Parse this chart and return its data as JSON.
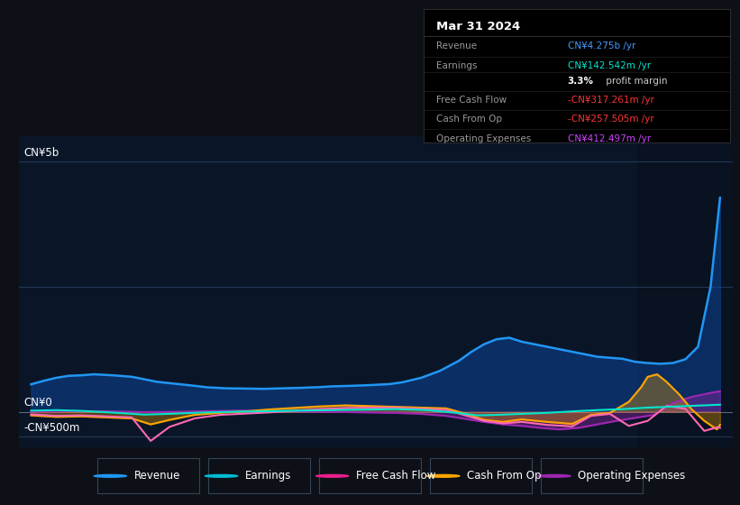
{
  "bg_color": "#0d1117",
  "plot_bg_color": "#0a1628",
  "ylim": [
    -700,
    5500
  ],
  "xlim": [
    2013.0,
    2024.35
  ],
  "ylabel_top": "CN¥5b",
  "ylabel_mid": "CN¥0",
  "ylabel_bot": "-CN¥500m",
  "ylabel_top_y": 5000,
  "ylabel_mid_y": 0,
  "ylabel_bot_y": -500,
  "xticks": [
    2014,
    2015,
    2016,
    2017,
    2018,
    2019,
    2020,
    2021,
    2022,
    2023,
    2024
  ],
  "revenue_x": [
    2013.2,
    2013.4,
    2013.6,
    2013.8,
    2014.0,
    2014.2,
    2014.5,
    2014.8,
    2015.0,
    2015.2,
    2015.5,
    2015.8,
    2016.0,
    2016.3,
    2016.6,
    2016.9,
    2017.2,
    2017.5,
    2017.8,
    2018.0,
    2018.3,
    2018.6,
    2018.9,
    2019.1,
    2019.4,
    2019.7,
    2020.0,
    2020.2,
    2020.4,
    2020.6,
    2020.8,
    2021.0,
    2021.2,
    2021.4,
    2021.6,
    2021.8,
    2022.0,
    2022.2,
    2022.4,
    2022.6,
    2022.8,
    2023.0,
    2023.2,
    2023.4,
    2023.6,
    2023.8,
    2024.0,
    2024.15
  ],
  "revenue_y": [
    550,
    620,
    680,
    720,
    730,
    750,
    730,
    700,
    650,
    600,
    560,
    520,
    490,
    470,
    465,
    460,
    470,
    480,
    495,
    510,
    520,
    535,
    555,
    590,
    680,
    820,
    1020,
    1200,
    1350,
    1450,
    1480,
    1400,
    1350,
    1300,
    1250,
    1200,
    1150,
    1100,
    1080,
    1060,
    1000,
    975,
    960,
    975,
    1050,
    1300,
    2500,
    4275
  ],
  "earnings_x": [
    2013.2,
    2013.6,
    2014.0,
    2014.5,
    2015.0,
    2015.5,
    2016.0,
    2016.5,
    2017.0,
    2017.5,
    2018.0,
    2018.5,
    2019.0,
    2019.5,
    2020.0,
    2020.3,
    2020.6,
    2021.0,
    2021.4,
    2021.8,
    2022.2,
    2022.6,
    2023.0,
    2023.4,
    2023.8,
    2024.15
  ],
  "earnings_y": [
    25,
    35,
    20,
    -15,
    -55,
    -35,
    -10,
    5,
    15,
    25,
    35,
    45,
    55,
    35,
    -25,
    -70,
    -60,
    -40,
    -20,
    10,
    35,
    55,
    85,
    105,
    125,
    143
  ],
  "fcf_x": [
    2013.2,
    2013.6,
    2014.0,
    2014.4,
    2014.8,
    2015.1,
    2015.4,
    2015.8,
    2016.2,
    2016.6,
    2017.0,
    2017.4,
    2017.8,
    2018.2,
    2018.6,
    2019.0,
    2019.4,
    2019.8,
    2020.1,
    2020.4,
    2020.7,
    2021.0,
    2021.4,
    2021.8,
    2022.1,
    2022.4,
    2022.7,
    2023.0,
    2023.3,
    2023.6,
    2023.9,
    2024.1,
    2024.15
  ],
  "fcf_y": [
    -50,
    -80,
    -70,
    -90,
    -110,
    -580,
    -300,
    -130,
    -60,
    -35,
    -10,
    25,
    55,
    75,
    85,
    80,
    60,
    40,
    -70,
    -180,
    -230,
    -200,
    -260,
    -290,
    -80,
    -40,
    -280,
    -180,
    120,
    60,
    -380,
    -310,
    -317
  ],
  "cfo_x": [
    2013.2,
    2013.6,
    2014.0,
    2014.4,
    2014.8,
    2015.1,
    2015.4,
    2015.8,
    2016.2,
    2016.6,
    2017.0,
    2017.4,
    2017.8,
    2018.2,
    2018.6,
    2019.0,
    2019.4,
    2019.8,
    2020.1,
    2020.4,
    2020.7,
    2021.0,
    2021.4,
    2021.8,
    2022.1,
    2022.4,
    2022.7,
    2022.9,
    2023.0,
    2023.15,
    2023.3,
    2023.5,
    2023.7,
    2023.9,
    2024.1,
    2024.15
  ],
  "cfo_y": [
    -70,
    -100,
    -90,
    -110,
    -130,
    -250,
    -160,
    -60,
    -20,
    10,
    50,
    80,
    110,
    130,
    115,
    100,
    85,
    70,
    -35,
    -160,
    -200,
    -150,
    -200,
    -240,
    -60,
    -20,
    200,
    500,
    700,
    750,
    600,
    350,
    50,
    -180,
    -350,
    -258
  ],
  "opex_x": [
    2013.2,
    2013.6,
    2014.0,
    2014.5,
    2015.0,
    2015.5,
    2016.0,
    2016.5,
    2017.0,
    2017.5,
    2018.0,
    2018.5,
    2019.0,
    2019.4,
    2019.8,
    2020.1,
    2020.4,
    2020.7,
    2021.0,
    2021.3,
    2021.6,
    2021.9,
    2022.2,
    2022.5,
    2022.8,
    2023.1,
    2023.4,
    2023.7,
    2024.0,
    2024.15
  ],
  "opex_y": [
    5,
    10,
    15,
    10,
    -5,
    0,
    15,
    25,
    18,
    10,
    0,
    -10,
    -20,
    -40,
    -80,
    -140,
    -200,
    -250,
    -280,
    -320,
    -350,
    -320,
    -250,
    -180,
    -120,
    -60,
    180,
    300,
    380,
    412
  ],
  "revenue_color": "#2196f3",
  "revenue_fill_color": "#0d47a1",
  "earnings_color": "#00e5cc",
  "fcf_color": "#ff69b4",
  "cfo_color": "#ffa500",
  "opex_color": "#9c27b0",
  "legend_items": [
    {
      "label": "Revenue",
      "color": "#2196f3"
    },
    {
      "label": "Earnings",
      "color": "#00bcd4"
    },
    {
      "label": "Free Cash Flow",
      "color": "#e91e8c"
    },
    {
      "label": "Cash From Op",
      "color": "#ffa500"
    },
    {
      "label": "Operating Expenses",
      "color": "#9c27b0"
    }
  ],
  "infobox_title": "Mar 31 2024",
  "infobox_rows": [
    {
      "label": "Revenue",
      "value": "CN¥4.275b /yr",
      "value_color": "#4499ff"
    },
    {
      "label": "Earnings",
      "value": "CN¥142.542m /yr",
      "value_color": "#00e5cc"
    },
    {
      "label": "",
      "value1": "3.3%",
      "value2": " profit margin",
      "bold1": true
    },
    {
      "label": "Free Cash Flow",
      "value": "-CN¥317.261m /yr",
      "value_color": "#ff3333"
    },
    {
      "label": "Cash From Op",
      "value": "-CN¥257.505m /yr",
      "value_color": "#ff3333"
    },
    {
      "label": "Operating Expenses",
      "value": "CN¥412.497m /yr",
      "value_color": "#cc44ff"
    }
  ]
}
